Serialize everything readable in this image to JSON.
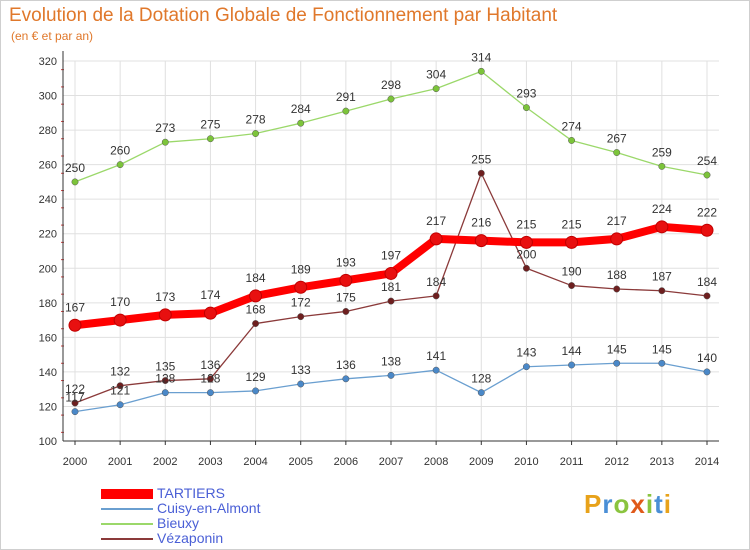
{
  "colors": {
    "title": "#e0782b",
    "legend_text": "#4a5fd6",
    "axis": "#333333",
    "grid": "#e0e0e0"
  },
  "logo_text": "Proxiti",
  "chart_data": {
    "type": "line",
    "title": "Evolution de la Dotation Globale de Fonctionnement par Habitant",
    "subtitle": "(en € et par an)",
    "xlabel": "",
    "ylabel": "",
    "x": [
      2000,
      2001,
      2002,
      2003,
      2004,
      2005,
      2006,
      2007,
      2008,
      2009,
      2010,
      2011,
      2012,
      2013,
      2014
    ],
    "x_tick_labels": [
      "2000",
      "2001",
      "2002",
      "2003",
      "2004",
      "2005",
      "2006",
      "2007",
      "2008",
      "2009",
      "2010",
      "2011",
      "2012",
      "2013",
      "2014"
    ],
    "ylim": [
      100,
      320
    ],
    "yticks": [
      100,
      120,
      140,
      160,
      180,
      200,
      220,
      240,
      260,
      280,
      300,
      320
    ],
    "grid": true,
    "legend_position": "bottom-left",
    "series": [
      {
        "name": "TARTIERS",
        "color": "#ff0000",
        "marker": "#e81010",
        "values": [
          167,
          170,
          173,
          174,
          184,
          189,
          193,
          197,
          217,
          216,
          215,
          215,
          217,
          224,
          222
        ]
      },
      {
        "name": "Cuisy-en-Almont",
        "color": "#6a9fd0",
        "marker": "#4a88c8",
        "values": [
          117,
          121,
          128,
          128,
          129,
          133,
          136,
          138,
          141,
          128,
          143,
          144,
          145,
          145,
          140
        ]
      },
      {
        "name": "Bieuxy",
        "color": "#9bd86a",
        "marker": "#7cc43a",
        "values": [
          250,
          260,
          273,
          275,
          278,
          284,
          291,
          298,
          304,
          314,
          293,
          274,
          267,
          259,
          254
        ]
      },
      {
        "name": "Vézaponin",
        "color": "#8b3a3a",
        "marker": "#6e1f1f",
        "values": [
          122,
          132,
          135,
          136,
          168,
          172,
          175,
          181,
          184,
          255,
          200,
          190,
          188,
          187,
          184
        ]
      }
    ]
  }
}
